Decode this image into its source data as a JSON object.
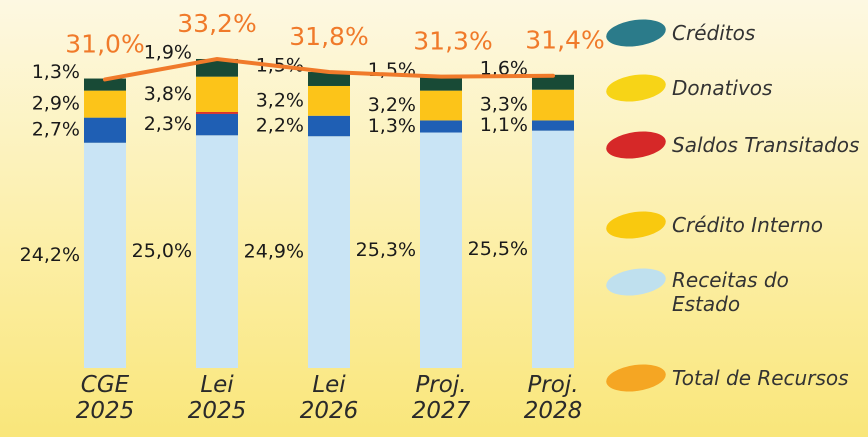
{
  "chart_data": {
    "type": "stacked-bar-line",
    "categories": [
      "CGE 2025",
      "Lei 2025",
      "Lei 2026",
      "Proj. 2027",
      "Proj. 2028"
    ],
    "ylim": [
      0,
      39
    ],
    "series": [
      {
        "name": "Créditos",
        "color": "#184a36",
        "legend_color": "#2b7b8a",
        "values": [
          1.3,
          1.9,
          1.5,
          1.5,
          1.6
        ],
        "value_labels": [
          "1,3%",
          "1,9%",
          "1,5%",
          "1,5%",
          "1,6%"
        ]
      },
      {
        "name": "Donativos",
        "color": "#fcc419",
        "legend_color": "#f7d417",
        "values": [
          2.9,
          3.8,
          3.2,
          3.2,
          3.3
        ],
        "value_labels": [
          "2,9%",
          "3,8%",
          "3,2%",
          "3,2%",
          "3,3%"
        ]
      },
      {
        "name": "Saldos Transitados",
        "color": "#d62828",
        "legend_color": "#d62828",
        "values": [
          0,
          0.2,
          0,
          0,
          0
        ]
      },
      {
        "name": "Crédito Interno",
        "color": "#1f5fb4",
        "legend_color": "#f9c90f",
        "values": [
          2.7,
          2.3,
          2.2,
          1.3,
          1.1
        ],
        "value_labels": [
          "2,7%",
          "2,3%",
          "2,2%",
          "1,3%",
          "1,1%"
        ]
      },
      {
        "name": "Receitas do Estado",
        "color": "#c9e4f5",
        "legend_color": "#bfe0ee",
        "values": [
          24.2,
          25.0,
          24.9,
          25.3,
          25.5
        ],
        "value_labels": [
          "24,2%",
          "25,0%",
          "24,9%",
          "25,3%",
          "25,5%"
        ]
      },
      {
        "name": "Total de Recursos",
        "type": "line",
        "color": "#f07a2a",
        "legend_color": "#f5a623",
        "values": [
          31.0,
          33.2,
          31.8,
          31.3,
          31.4
        ],
        "value_labels": [
          "31,0%",
          "33,2%",
          "31,8%",
          "31,3%",
          "31,4%"
        ]
      }
    ]
  }
}
